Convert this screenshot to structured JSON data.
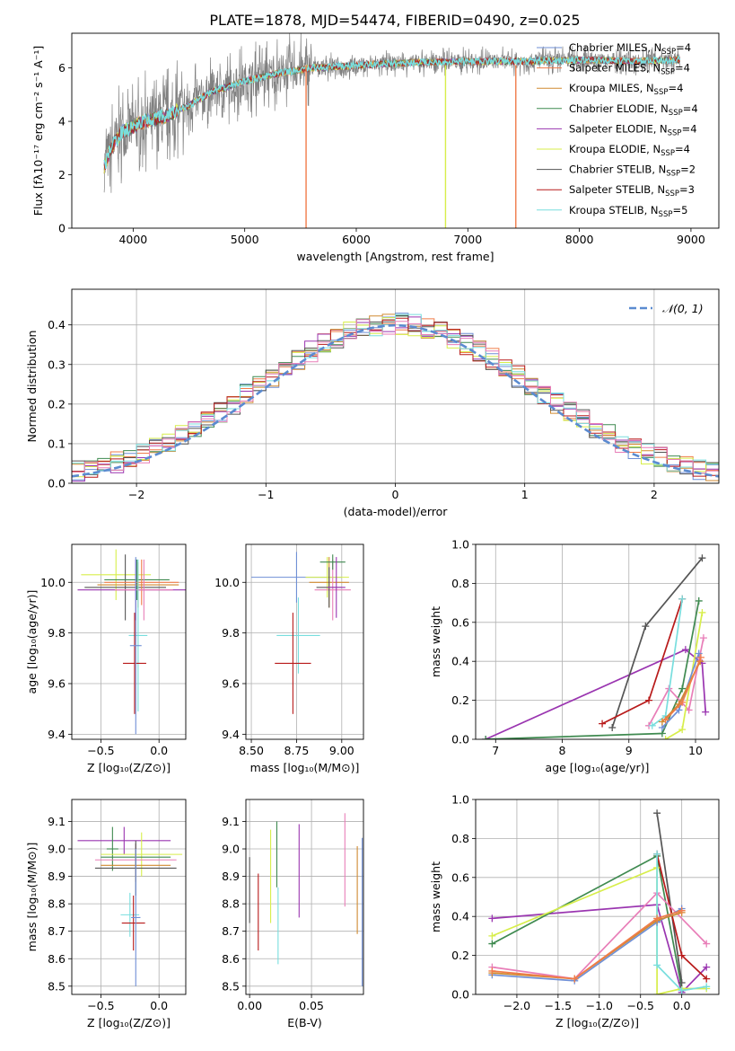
{
  "figure": {
    "title": "PLATE=1878, MJD=54474, FIBERID=0490, z=0.025"
  },
  "colors": {
    "chabrier_miles": "#6f8fd6",
    "salpeter_miles": "#f07c4a",
    "kroupa_miles": "#d08a30",
    "chabrier_elodie": "#3f8a50",
    "salpeter_elodie": "#9a35b0",
    "kroupa_elodie": "#d7ee4a",
    "chabrier_stelib": "#555555",
    "salpeter_stelib": "#b81a1a",
    "kroupa_stelib": "#78dede",
    "pink": "#e87eb8",
    "normal_curve": "#5b8bd0",
    "observed": "#808080"
  },
  "chart_data": [
    {
      "id": "spectrum",
      "type": "line",
      "xlabel": "wavelength [Angstrom, rest frame]",
      "ylabel": "Flux [fλ10⁻¹⁷ erg cm⁻² s⁻¹ A⁻¹]",
      "xlim": [
        3450,
        9250
      ],
      "ylim": [
        0,
        7.3
      ],
      "xticks": [
        4000,
        5000,
        6000,
        7000,
        8000,
        9000
      ],
      "yticks": [
        0,
        2,
        4,
        6
      ],
      "grid": false,
      "legend_position": "top-right",
      "legend": [
        {
          "label": "Chabrier MILES, N",
          "sub": "SSP",
          "suffix": "=4",
          "color": "#6f8fd6"
        },
        {
          "label": "Salpeter MILES, N",
          "sub": "SSP",
          "suffix": "=4",
          "color": "#f07c4a"
        },
        {
          "label": "Kroupa MILES, N",
          "sub": "SSP",
          "suffix": "=4",
          "color": "#d08a30"
        },
        {
          "label": "Chabrier ELODIE, N",
          "sub": "SSP",
          "suffix": "=4",
          "color": "#3f8a50"
        },
        {
          "label": "Salpeter ELODIE, N",
          "sub": "SSP",
          "suffix": "=4",
          "color": "#9a35b0"
        },
        {
          "label": "Kroupa ELODIE, N",
          "sub": "SSP",
          "suffix": "=4",
          "color": "#d7ee4a"
        },
        {
          "label": "Chabrier STELIB, N",
          "sub": "SSP",
          "suffix": "=2",
          "color": "#555555"
        },
        {
          "label": "Salpeter STELIB, N",
          "sub": "SSP",
          "suffix": "=3",
          "color": "#b81a1a"
        },
        {
          "label": "Kroupa STELIB, N",
          "sub": "SSP",
          "suffix": "=5",
          "color": "#78dede"
        }
      ],
      "continuum": {
        "x": [
          3740,
          3800,
          3900,
          4000,
          4100,
          4200,
          4300,
          4500,
          4700,
          5000,
          5300,
          5600,
          6000,
          6500,
          7000,
          7500,
          8000,
          8500,
          8900
        ],
        "y": [
          2.3,
          3.0,
          3.6,
          3.8,
          4.0,
          4.1,
          4.2,
          4.6,
          5.1,
          5.5,
          5.8,
          6.0,
          6.1,
          6.2,
          6.25,
          6.25,
          6.3,
          6.25,
          6.3
        ]
      },
      "dropouts": [
        {
          "x": 5550,
          "color": "#f07c4a"
        },
        {
          "x": 6800,
          "color": "#d7ee4a"
        },
        {
          "x": 7430,
          "color": "#f07c4a"
        }
      ]
    },
    {
      "id": "residuals",
      "type": "area",
      "xlabel": "(data-model)/error",
      "ylabel": "Normed distribution",
      "xlim": [
        -2.5,
        2.5
      ],
      "ylim": [
        0,
        0.49
      ],
      "xticks": [
        -2,
        -1,
        0,
        1,
        2
      ],
      "yticks": [
        0.0,
        0.1,
        0.2,
        0.3,
        0.4
      ],
      "grid": true,
      "legend_position": "top-right",
      "legend": [
        {
          "label": "𝒩(0, 1)",
          "color": "#5b8bd0",
          "style": "dashed"
        }
      ],
      "bin_width": 0.1
    },
    {
      "id": "age-vs-z",
      "type": "scatter",
      "xlabel": "Z [log₁₀(Z/Z⊙)]",
      "ylabel": "age  [log₁₀(age/yr)]",
      "xlim": [
        -0.75,
        0.23
      ],
      "ylim": [
        9.38,
        10.15
      ],
      "xticks": [
        -0.5,
        0.0
      ],
      "yticks": [
        9.4,
        9.6,
        9.8,
        10.0
      ],
      "grid": true,
      "points": [
        {
          "x": -0.37,
          "y": 10.03,
          "xerr": 0.3,
          "yerr": 0.1,
          "color": "#d7ee4a"
        },
        {
          "x": -0.29,
          "y": 9.98,
          "xerr": 0.35,
          "yerr": 0.13,
          "color": "#555555"
        },
        {
          "x": -0.2,
          "y": 9.97,
          "xerr": 0.5,
          "yerr": 0.12,
          "color": "#9a35b0"
        },
        {
          "x": -0.19,
          "y": 10.01,
          "xerr": 0.28,
          "yerr": 0.08,
          "color": "#3f8a50"
        },
        {
          "x": -0.15,
          "y": 10.0,
          "xerr": 0.32,
          "yerr": 0.09,
          "color": "#f07c4a"
        },
        {
          "x": -0.18,
          "y": 9.99,
          "xerr": 0.35,
          "yerr": 0.09,
          "color": "#d08a30"
        },
        {
          "x": -0.13,
          "y": 9.97,
          "xerr": 0.25,
          "yerr": 0.12,
          "color": "#e87eb8"
        },
        {
          "x": -0.18,
          "y": 9.79,
          "xerr": 0.08,
          "yerr": 0.3,
          "color": "#78dede"
        },
        {
          "x": -0.21,
          "y": 9.68,
          "xerr": 0.1,
          "yerr": 0.2,
          "color": "#b81a1a"
        },
        {
          "x": -0.2,
          "y": 9.75,
          "xerr": 0.05,
          "yerr": 0.35,
          "color": "#6f8fd6"
        }
      ]
    },
    {
      "id": "age-vs-mass",
      "type": "scatter",
      "xlabel": "mass [log₁₀(M/M⊙)]",
      "ylabel": "",
      "xlim": [
        8.47,
        9.12
      ],
      "ylim": [
        9.38,
        10.15
      ],
      "xticks": [
        8.5,
        8.75,
        9.0
      ],
      "yticks": [
        9.4,
        9.6,
        9.8,
        10.0
      ],
      "grid": true,
      "points": [
        {
          "x": 8.75,
          "y": 10.02,
          "xerr": 0.25,
          "yerr": 0.1,
          "color": "#6f8fd6"
        },
        {
          "x": 8.92,
          "y": 10.02,
          "xerr": 0.12,
          "yerr": 0.08,
          "color": "#d7ee4a"
        },
        {
          "x": 8.93,
          "y": 10.0,
          "xerr": 0.11,
          "yerr": 0.1,
          "color": "#d08a30"
        },
        {
          "x": 8.95,
          "y": 9.97,
          "xerr": 0.1,
          "yerr": 0.12,
          "color": "#e87eb8"
        },
        {
          "x": 8.93,
          "y": 9.98,
          "xerr": 0.07,
          "yerr": 0.08,
          "color": "#555555"
        },
        {
          "x": 8.95,
          "y": 10.08,
          "xerr": 0.07,
          "yerr": 0.03,
          "color": "#3f8a50"
        },
        {
          "x": 8.97,
          "y": 9.98,
          "xerr": 0.05,
          "yerr": 0.12,
          "color": "#9a35b0"
        },
        {
          "x": 8.76,
          "y": 9.79,
          "xerr": 0.12,
          "yerr": 0.15,
          "color": "#78dede"
        },
        {
          "x": 8.73,
          "y": 9.68,
          "xerr": 0.1,
          "yerr": 0.2,
          "color": "#b81a1a"
        }
      ]
    },
    {
      "id": "weight-vs-age",
      "type": "line",
      "xlabel": "age  [log₁₀(age/yr)]",
      "ylabel": "mass weight",
      "xlim": [
        6.7,
        10.35
      ],
      "ylim": [
        0,
        1.0
      ],
      "xticks": [
        7,
        8,
        9,
        10
      ],
      "yticks": [
        0.0,
        0.2,
        0.4,
        0.6,
        0.8,
        1.0
      ],
      "grid": true,
      "series": [
        {
          "color": "#9a35b0",
          "x": [
            6.85,
            9.85,
            10.1,
            10.15
          ],
          "y": [
            0.0,
            0.46,
            0.39,
            0.14
          ]
        },
        {
          "color": "#3f8a50",
          "x": [
            6.85,
            9.5,
            9.8,
            10.05
          ],
          "y": [
            0.0,
            0.03,
            0.26,
            0.71
          ]
        },
        {
          "color": "#555555",
          "x": [
            8.75,
            9.25,
            10.1
          ],
          "y": [
            0.06,
            0.58,
            0.93
          ]
        },
        {
          "color": "#b81a1a",
          "x": [
            8.6,
            9.3,
            9.8
          ],
          "y": [
            0.08,
            0.2,
            0.72
          ]
        },
        {
          "color": "#e87eb8",
          "x": [
            9.3,
            9.6,
            9.9,
            10.12
          ],
          "y": [
            0.07,
            0.26,
            0.15,
            0.52
          ]
        },
        {
          "color": "#d7ee4a",
          "x": [
            9.55,
            9.8,
            10.1
          ],
          "y": [
            0.0,
            0.05,
            0.65
          ]
        },
        {
          "color": "#78dede",
          "x": [
            9.35,
            9.55,
            9.8
          ],
          "y": [
            0.07,
            0.12,
            0.72
          ]
        },
        {
          "color": "#6f8fd6",
          "x": [
            9.5,
            9.75,
            10.05
          ],
          "y": [
            0.06,
            0.15,
            0.44
          ]
        },
        {
          "color": "#d08a30",
          "x": [
            9.5,
            9.75,
            10.07
          ],
          "y": [
            0.09,
            0.18,
            0.4
          ]
        },
        {
          "color": "#f07c4a",
          "x": [
            9.55,
            9.8,
            10.08
          ],
          "y": [
            0.1,
            0.19,
            0.42
          ]
        }
      ]
    },
    {
      "id": "mass-vs-z",
      "type": "scatter",
      "xlabel": "Z [log₁₀(Z/Z⊙)]",
      "ylabel": "mass [log₁₀(M/M⊙)]",
      "xlim": [
        -0.75,
        0.23
      ],
      "ylim": [
        8.47,
        9.18
      ],
      "xticks": [
        -0.5,
        0.0
      ],
      "yticks": [
        8.5,
        8.6,
        8.7,
        8.8,
        8.9,
        9.0,
        9.1
      ],
      "grid": true,
      "points": [
        {
          "x": -0.3,
          "y": 9.03,
          "xerr": 0.4,
          "yerr": 0.05,
          "color": "#9a35b0"
        },
        {
          "x": -0.4,
          "y": 9.0,
          "xerr": 0.05,
          "yerr": 0.08,
          "color": "#3f8a50"
        },
        {
          "x": -0.15,
          "y": 8.98,
          "xerr": 0.35,
          "yerr": 0.08,
          "color": "#d7ee4a"
        },
        {
          "x": -0.2,
          "y": 8.97,
          "xerr": 0.3,
          "yerr": 0.05,
          "color": "#3f8a50"
        },
        {
          "x": -0.2,
          "y": 8.96,
          "xerr": 0.35,
          "yerr": 0.06,
          "color": "#e87eb8"
        },
        {
          "x": -0.2,
          "y": 8.94,
          "xerr": 0.3,
          "yerr": 0.06,
          "color": "#d08a30"
        },
        {
          "x": -0.2,
          "y": 8.93,
          "xerr": 0.35,
          "yerr": 0.1,
          "color": "#555555"
        },
        {
          "x": -0.25,
          "y": 8.76,
          "xerr": 0.08,
          "yerr": 0.08,
          "color": "#78dede"
        },
        {
          "x": -0.22,
          "y": 8.73,
          "xerr": 0.1,
          "yerr": 0.1,
          "color": "#b81a1a"
        },
        {
          "x": -0.2,
          "y": 8.75,
          "xerr": 0.04,
          "yerr": 0.25,
          "color": "#6f8fd6"
        }
      ]
    },
    {
      "id": "mass-vs-ebv",
      "type": "scatter",
      "xlabel": "E(B-V)",
      "ylabel": "",
      "xlim": [
        -0.003,
        0.092
      ],
      "ylim": [
        8.47,
        9.18
      ],
      "xticks": [
        0.0,
        0.05
      ],
      "yticks": [
        8.5,
        8.6,
        8.7,
        8.8,
        8.9,
        9.0,
        9.1
      ],
      "grid": true,
      "points": [
        {
          "x": 0.0,
          "y": 8.85,
          "yerr": 0.12,
          "color": "#555555"
        },
        {
          "x": 0.007,
          "y": 8.77,
          "yerr": 0.14,
          "color": "#b81a1a"
        },
        {
          "x": 0.017,
          "y": 8.9,
          "yerr": 0.17,
          "color": "#d7ee4a"
        },
        {
          "x": 0.022,
          "y": 8.98,
          "yerr": 0.12,
          "color": "#3f8a50"
        },
        {
          "x": 0.023,
          "y": 8.72,
          "yerr": 0.14,
          "color": "#78dede"
        },
        {
          "x": 0.04,
          "y": 8.92,
          "yerr": 0.17,
          "color": "#9a35b0"
        },
        {
          "x": 0.077,
          "y": 8.96,
          "yerr": 0.17,
          "color": "#e87eb8"
        },
        {
          "x": 0.087,
          "y": 8.85,
          "yerr": 0.16,
          "color": "#d08a30"
        },
        {
          "x": 0.091,
          "y": 8.77,
          "yerr": 0.27,
          "color": "#6f8fd6"
        }
      ]
    },
    {
      "id": "weight-vs-z",
      "type": "line",
      "xlabel": "Z [log₁₀(Z/Z⊙)]",
      "ylabel": "mass weight",
      "xlim": [
        -2.5,
        0.45
      ],
      "ylim": [
        0,
        1.0
      ],
      "xticks": [
        -2.0,
        -1.5,
        -1.0,
        -0.5,
        0.0
      ],
      "yticks": [
        0.0,
        0.2,
        0.4,
        0.6,
        0.8,
        1.0
      ],
      "grid": true,
      "series": [
        {
          "color": "#9a35b0",
          "x": [
            -2.3,
            -0.3,
            0.0,
            0.3
          ],
          "y": [
            0.39,
            0.46,
            0.01,
            0.14
          ]
        },
        {
          "color": "#3f8a50",
          "x": [
            -2.3,
            -0.3,
            0.0
          ],
          "y": [
            0.26,
            0.71,
            0.03
          ]
        },
        {
          "color": "#d7ee4a",
          "x": [
            -2.3,
            -0.3,
            -0.3,
            0.0,
            0.3
          ],
          "y": [
            0.3,
            0.65,
            0.0,
            0.03,
            0.03
          ]
        },
        {
          "color": "#555555",
          "x": [
            -0.3,
            0.0
          ],
          "y": [
            0.93,
            0.06
          ]
        },
        {
          "color": "#b81a1a",
          "x": [
            -0.3,
            0.0,
            0.3
          ],
          "y": [
            0.72,
            0.2,
            0.08
          ]
        },
        {
          "color": "#e87eb8",
          "x": [
            -2.3,
            -1.3,
            -0.3,
            0.3
          ],
          "y": [
            0.14,
            0.08,
            0.52,
            0.26
          ]
        },
        {
          "color": "#78dede",
          "x": [
            -0.3,
            -0.3,
            0.0,
            0.3
          ],
          "y": [
            0.72,
            0.15,
            0.02,
            0.04
          ]
        },
        {
          "color": "#6f8fd6",
          "x": [
            -2.3,
            -1.3,
            -0.3,
            0.0
          ],
          "y": [
            0.1,
            0.07,
            0.37,
            0.44
          ]
        },
        {
          "color": "#d08a30",
          "x": [
            -2.3,
            -1.3,
            -0.3,
            0.0
          ],
          "y": [
            0.11,
            0.08,
            0.38,
            0.42
          ]
        },
        {
          "color": "#f07c4a",
          "x": [
            -2.3,
            -1.3,
            -0.3,
            0.0
          ],
          "y": [
            0.12,
            0.08,
            0.39,
            0.43
          ]
        }
      ]
    }
  ]
}
